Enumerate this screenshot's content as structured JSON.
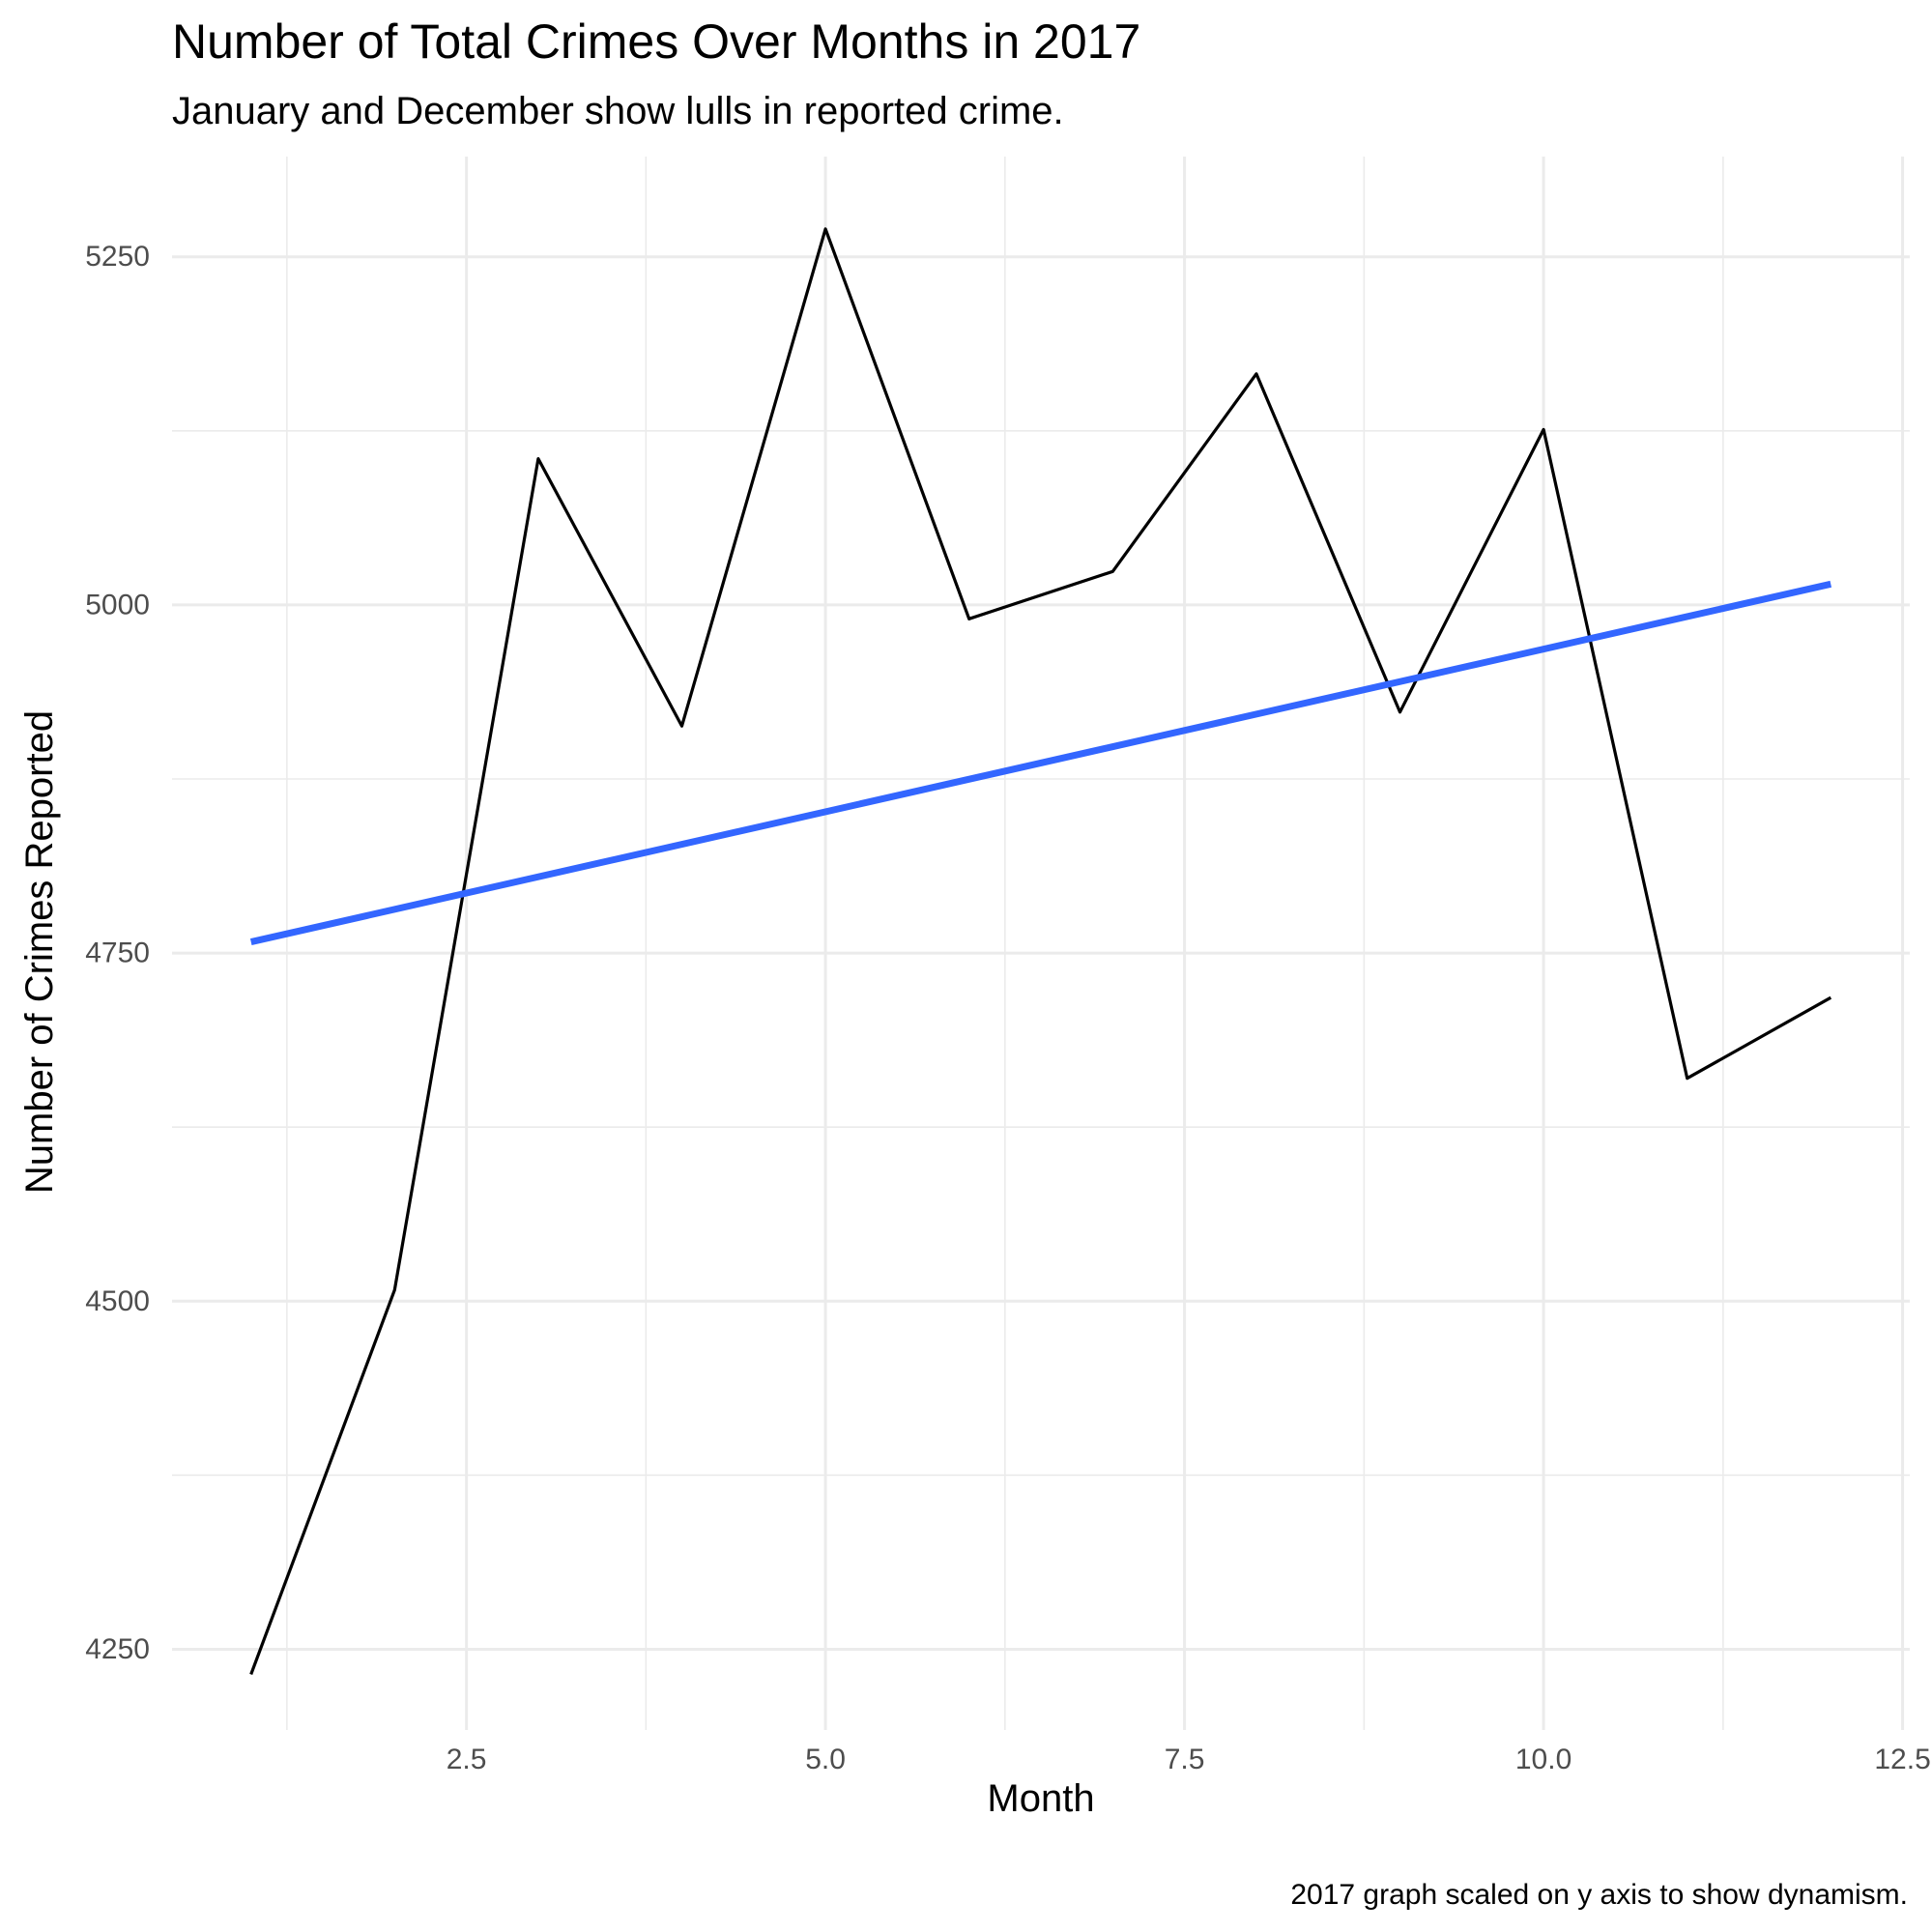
{
  "chart_data": {
    "type": "line",
    "title": "Number of Total Crimes Over Months in 2017",
    "subtitle": "January and December show lulls in reported crime.",
    "xlabel": "Month",
    "ylabel": "Number of Crimes Reported",
    "caption": "2017 graph scaled on y axis to show dynamism.",
    "x": [
      1,
      2,
      3,
      4,
      5,
      6,
      7,
      8,
      9,
      10,
      11,
      12
    ],
    "series": [
      {
        "values": [
          4232,
          4508,
          5105,
          4913,
          5270,
          4990,
          5024,
          5166,
          4923,
          5126,
          4660,
          4718
        ],
        "color": "#000000"
      }
    ],
    "trend_line": {
      "x": [
        1,
        12
      ],
      "y": [
        4758,
        5015
      ],
      "color": "#3366ff"
    },
    "xlim": [
      0.45,
      12.55
    ],
    "ylim": [
      4192,
      5322
    ],
    "x_ticks": [
      2.5,
      5.0,
      7.5,
      10.0,
      12.5
    ],
    "x_tick_labels": [
      "2.5",
      "5.0",
      "7.5",
      "10.0",
      "12.5"
    ],
    "x_minor_ticks": [
      1.25,
      3.75,
      6.25,
      8.75,
      11.25
    ],
    "y_ticks": [
      4250,
      4500,
      4750,
      5000,
      5250
    ],
    "y_tick_labels": [
      "4250",
      "4500",
      "4750",
      "5000",
      "5250"
    ],
    "y_minor_ticks": [
      4375,
      4625,
      4875,
      5125
    ],
    "grid": true,
    "legend": "none"
  }
}
